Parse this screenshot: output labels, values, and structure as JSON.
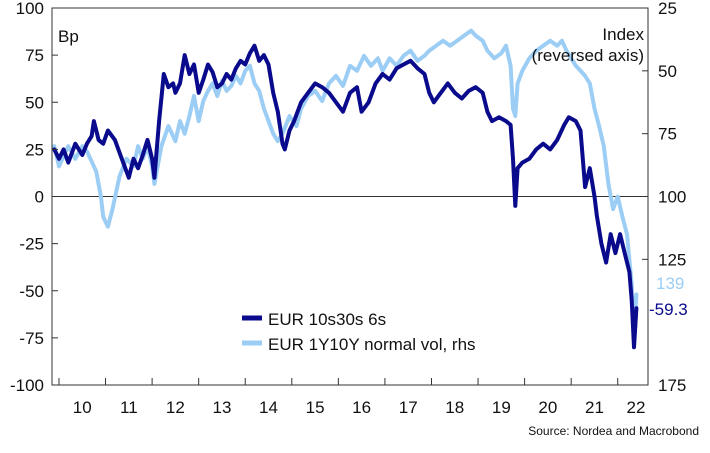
{
  "chart_data": {
    "type": "line",
    "left_axis_label": "Bp",
    "right_axis_label_line1": "Index",
    "right_axis_label_line2": "(reversed axis)",
    "source": "Source: Nordea and Macrobond",
    "left_axis": {
      "min": -100,
      "max": 100,
      "ticks": [
        100,
        75,
        50,
        25,
        0,
        -25,
        -50,
        -75,
        -100
      ]
    },
    "right_axis": {
      "min": 25,
      "max": 175,
      "reversed": true,
      "ticks": [
        25,
        50,
        75,
        100,
        125,
        175
      ]
    },
    "x_axis": {
      "min": 2009.85,
      "max": 2022.65,
      "ticks": [
        "10",
        "11",
        "12",
        "13",
        "14",
        "15",
        "16",
        "17",
        "18",
        "19",
        "20",
        "21",
        "22"
      ]
    },
    "zero_line": true,
    "legend_position": "bottom-center",
    "series": [
      {
        "name": "EUR 10s30s 6s",
        "axis": "left",
        "color": "#0a0a8c",
        "last_value_label": "-59.3",
        "points": [
          [
            2009.9,
            25
          ],
          [
            2010.0,
            20
          ],
          [
            2010.1,
            25
          ],
          [
            2010.2,
            18
          ],
          [
            2010.35,
            28
          ],
          [
            2010.5,
            22
          ],
          [
            2010.6,
            28
          ],
          [
            2010.7,
            32
          ],
          [
            2010.75,
            40
          ],
          [
            2010.85,
            30
          ],
          [
            2010.95,
            28
          ],
          [
            2011.05,
            35
          ],
          [
            2011.2,
            30
          ],
          [
            2011.35,
            20
          ],
          [
            2011.5,
            10
          ],
          [
            2011.6,
            20
          ],
          [
            2011.7,
            15
          ],
          [
            2011.8,
            22
          ],
          [
            2011.9,
            30
          ],
          [
            2012.0,
            20
          ],
          [
            2012.05,
            10
          ],
          [
            2012.15,
            40
          ],
          [
            2012.25,
            65
          ],
          [
            2012.35,
            58
          ],
          [
            2012.45,
            60
          ],
          [
            2012.5,
            55
          ],
          [
            2012.6,
            60
          ],
          [
            2012.7,
            75
          ],
          [
            2012.8,
            65
          ],
          [
            2012.9,
            70
          ],
          [
            2013.0,
            55
          ],
          [
            2013.1,
            62
          ],
          [
            2013.2,
            70
          ],
          [
            2013.3,
            66
          ],
          [
            2013.4,
            58
          ],
          [
            2013.5,
            60
          ],
          [
            2013.6,
            65
          ],
          [
            2013.7,
            62
          ],
          [
            2013.8,
            68
          ],
          [
            2013.9,
            72
          ],
          [
            2014.0,
            70
          ],
          [
            2014.1,
            76
          ],
          [
            2014.2,
            80
          ],
          [
            2014.3,
            72
          ],
          [
            2014.4,
            75
          ],
          [
            2014.5,
            70
          ],
          [
            2014.6,
            55
          ],
          [
            2014.7,
            45
          ],
          [
            2014.8,
            28
          ],
          [
            2014.85,
            25
          ],
          [
            2014.95,
            35
          ],
          [
            2015.05,
            40
          ],
          [
            2015.2,
            50
          ],
          [
            2015.35,
            55
          ],
          [
            2015.5,
            60
          ],
          [
            2015.65,
            58
          ],
          [
            2015.8,
            55
          ],
          [
            2015.95,
            50
          ],
          [
            2016.1,
            45
          ],
          [
            2016.25,
            55
          ],
          [
            2016.4,
            58
          ],
          [
            2016.5,
            45
          ],
          [
            2016.65,
            50
          ],
          [
            2016.8,
            60
          ],
          [
            2016.95,
            65
          ],
          [
            2017.1,
            62
          ],
          [
            2017.25,
            68
          ],
          [
            2017.4,
            70
          ],
          [
            2017.55,
            72
          ],
          [
            2017.7,
            68
          ],
          [
            2017.85,
            65
          ],
          [
            2017.95,
            55
          ],
          [
            2018.05,
            50
          ],
          [
            2018.2,
            55
          ],
          [
            2018.35,
            60
          ],
          [
            2018.5,
            55
          ],
          [
            2018.65,
            52
          ],
          [
            2018.8,
            56
          ],
          [
            2018.95,
            58
          ],
          [
            2019.1,
            55
          ],
          [
            2019.2,
            45
          ],
          [
            2019.3,
            40
          ],
          [
            2019.45,
            42
          ],
          [
            2019.6,
            40
          ],
          [
            2019.7,
            38
          ],
          [
            2019.75,
            20
          ],
          [
            2019.8,
            -5
          ],
          [
            2019.85,
            15
          ],
          [
            2019.95,
            18
          ],
          [
            2020.1,
            20
          ],
          [
            2020.25,
            25
          ],
          [
            2020.4,
            28
          ],
          [
            2020.55,
            25
          ],
          [
            2020.7,
            30
          ],
          [
            2020.85,
            38
          ],
          [
            2020.95,
            42
          ],
          [
            2021.1,
            40
          ],
          [
            2021.2,
            35
          ],
          [
            2021.25,
            20
          ],
          [
            2021.3,
            5
          ],
          [
            2021.4,
            15
          ],
          [
            2021.5,
            0
          ],
          [
            2021.55,
            -10
          ],
          [
            2021.65,
            -25
          ],
          [
            2021.75,
            -35
          ],
          [
            2021.85,
            -20
          ],
          [
            2021.95,
            -30
          ],
          [
            2022.05,
            -20
          ],
          [
            2022.15,
            -30
          ],
          [
            2022.25,
            -40
          ],
          [
            2022.3,
            -55
          ],
          [
            2022.35,
            -80
          ],
          [
            2022.4,
            -59.3
          ]
        ]
      },
      {
        "name": "EUR 1Y10Y normal vol, rhs",
        "axis": "right",
        "color": "#9ccdf5",
        "last_value_label": "139",
        "points": [
          [
            2009.9,
            80
          ],
          [
            2010.0,
            88
          ],
          [
            2010.1,
            84
          ],
          [
            2010.2,
            80
          ],
          [
            2010.35,
            85
          ],
          [
            2010.5,
            80
          ],
          [
            2010.6,
            82
          ],
          [
            2010.7,
            86
          ],
          [
            2010.8,
            90
          ],
          [
            2010.9,
            100
          ],
          [
            2010.95,
            108
          ],
          [
            2011.05,
            112
          ],
          [
            2011.15,
            105
          ],
          [
            2011.3,
            92
          ],
          [
            2011.45,
            85
          ],
          [
            2011.6,
            88
          ],
          [
            2011.7,
            80
          ],
          [
            2011.8,
            85
          ],
          [
            2011.9,
            80
          ],
          [
            2012.0,
            88
          ],
          [
            2012.05,
            95
          ],
          [
            2012.2,
            80
          ],
          [
            2012.35,
            72
          ],
          [
            2012.5,
            78
          ],
          [
            2012.6,
            70
          ],
          [
            2012.7,
            75
          ],
          [
            2012.8,
            68
          ],
          [
            2012.9,
            60
          ],
          [
            2013.0,
            70
          ],
          [
            2013.1,
            62
          ],
          [
            2013.2,
            58
          ],
          [
            2013.3,
            55
          ],
          [
            2013.4,
            60
          ],
          [
            2013.5,
            54
          ],
          [
            2013.6,
            58
          ],
          [
            2013.7,
            56
          ],
          [
            2013.8,
            52
          ],
          [
            2013.9,
            55
          ],
          [
            2014.0,
            50
          ],
          [
            2014.1,
            48
          ],
          [
            2014.2,
            55
          ],
          [
            2014.3,
            58
          ],
          [
            2014.4,
            65
          ],
          [
            2014.5,
            70
          ],
          [
            2014.6,
            75
          ],
          [
            2014.7,
            78
          ],
          [
            2014.8,
            75
          ],
          [
            2014.95,
            68
          ],
          [
            2015.1,
            72
          ],
          [
            2015.2,
            65
          ],
          [
            2015.35,
            60
          ],
          [
            2015.5,
            58
          ],
          [
            2015.65,
            62
          ],
          [
            2015.8,
            55
          ],
          [
            2015.95,
            52
          ],
          [
            2016.1,
            56
          ],
          [
            2016.25,
            48
          ],
          [
            2016.4,
            50
          ],
          [
            2016.55,
            44
          ],
          [
            2016.7,
            48
          ],
          [
            2016.85,
            45
          ],
          [
            2016.95,
            50
          ],
          [
            2017.1,
            45
          ],
          [
            2017.25,
            48
          ],
          [
            2017.4,
            44
          ],
          [
            2017.55,
            42
          ],
          [
            2017.7,
            46
          ],
          [
            2017.85,
            44
          ],
          [
            2017.95,
            42
          ],
          [
            2018.1,
            40
          ],
          [
            2018.25,
            38
          ],
          [
            2018.4,
            40
          ],
          [
            2018.55,
            38
          ],
          [
            2018.7,
            36
          ],
          [
            2018.85,
            34
          ],
          [
            2018.95,
            36
          ],
          [
            2019.1,
            38
          ],
          [
            2019.2,
            42
          ],
          [
            2019.35,
            45
          ],
          [
            2019.5,
            43
          ],
          [
            2019.6,
            40
          ],
          [
            2019.7,
            48
          ],
          [
            2019.75,
            65
          ],
          [
            2019.8,
            68
          ],
          [
            2019.85,
            55
          ],
          [
            2019.95,
            50
          ],
          [
            2020.1,
            45
          ],
          [
            2020.25,
            42
          ],
          [
            2020.4,
            40
          ],
          [
            2020.55,
            38
          ],
          [
            2020.7,
            40
          ],
          [
            2020.8,
            38
          ],
          [
            2020.9,
            42
          ],
          [
            2021.0,
            45
          ],
          [
            2021.1,
            48
          ],
          [
            2021.2,
            50
          ],
          [
            2021.3,
            52
          ],
          [
            2021.4,
            55
          ],
          [
            2021.5,
            65
          ],
          [
            2021.6,
            72
          ],
          [
            2021.7,
            80
          ],
          [
            2021.8,
            95
          ],
          [
            2021.9,
            105
          ],
          [
            2022.0,
            100
          ],
          [
            2022.1,
            108
          ],
          [
            2022.2,
            115
          ],
          [
            2022.3,
            135
          ],
          [
            2022.35,
            155
          ],
          [
            2022.4,
            139
          ]
        ]
      }
    ]
  }
}
